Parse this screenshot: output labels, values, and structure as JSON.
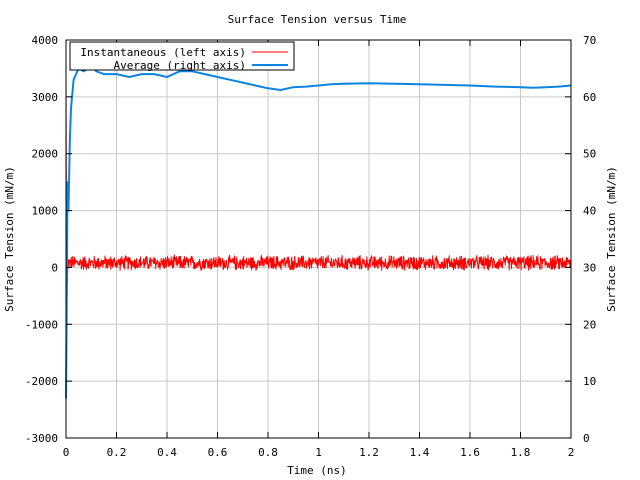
{
  "chart_data": {
    "type": "line",
    "title": "Surface Tension versus Time",
    "xlabel": "Time (ns)",
    "ylabel_left": "Surface Tension (mN/m)",
    "ylabel_right": "Surface Tension (mN/m)",
    "xlim": [
      0,
      2
    ],
    "ylim_left": [
      -3000,
      4000
    ],
    "ylim_right": [
      0,
      70
    ],
    "x_ticks": [
      0,
      0.2,
      0.4,
      0.6,
      0.8,
      1,
      1.2,
      1.4,
      1.6,
      1.8,
      2
    ],
    "x_tick_labels": [
      "0",
      "0.2",
      "0.4",
      "0.6",
      "0.8",
      "1",
      "1.2",
      "1.4",
      "1.6",
      "1.8",
      "2"
    ],
    "y_left_ticks": [
      -3000,
      -2000,
      -1000,
      0,
      1000,
      2000,
      3000,
      4000
    ],
    "y_left_tick_labels": [
      "-3000",
      "-2000",
      "-1000",
      "0",
      "1000",
      "2000",
      "3000",
      "4000"
    ],
    "y_right_ticks": [
      0,
      10,
      20,
      30,
      40,
      50,
      60,
      70
    ],
    "y_right_tick_labels": [
      "0",
      "10",
      "20",
      "30",
      "40",
      "50",
      "60",
      "70"
    ],
    "grid": true,
    "legend_position": "top-left",
    "series": [
      {
        "name": "Instantaneous (left axis)",
        "axis": "left",
        "color": "#ff0000",
        "style": "noisy",
        "mean": 80,
        "spread": 120,
        "x_range": [
          0,
          2
        ]
      },
      {
        "name": "Average (right axis)",
        "axis": "right",
        "color": "#0a84e0",
        "x": [
          0,
          0.003,
          0.006,
          0.01,
          0.015,
          0.02,
          0.03,
          0.04,
          0.05,
          0.07,
          0.1,
          0.12,
          0.15,
          0.2,
          0.25,
          0.3,
          0.35,
          0.4,
          0.45,
          0.5,
          0.55,
          0.6,
          0.65,
          0.7,
          0.75,
          0.8,
          0.85,
          0.88,
          0.9,
          0.95,
          1.0,
          1.05,
          1.1,
          1.2,
          1.3,
          1.4,
          1.5,
          1.6,
          1.7,
          1.8,
          1.85,
          1.9,
          1.95,
          2.0
        ],
        "y": [
          7,
          25,
          45,
          40,
          52,
          58,
          63,
          64,
          65,
          64.5,
          65.5,
          64.5,
          64,
          64,
          63.5,
          64,
          64,
          63.5,
          64.5,
          64.5,
          64,
          63.5,
          63,
          62.5,
          62,
          61.5,
          61.2,
          61.5,
          61.7,
          61.8,
          62,
          62.2,
          62.3,
          62.4,
          62.3,
          62.2,
          62.1,
          62.0,
          61.8,
          61.7,
          61.6,
          61.7,
          61.8,
          62.0
        ]
      }
    ]
  }
}
